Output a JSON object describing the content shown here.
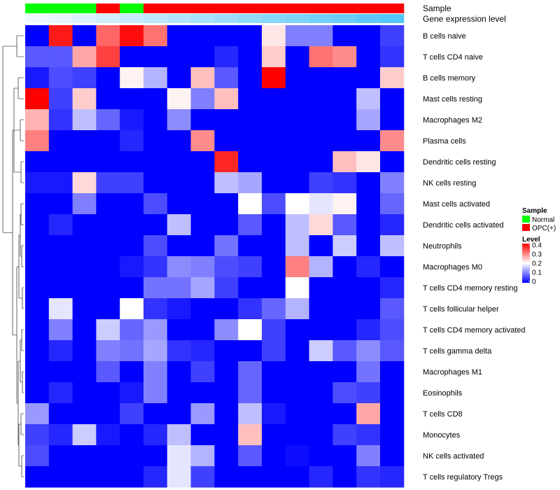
{
  "chart_data": {
    "type": "heatmap",
    "title": "",
    "annotation_tracks": [
      {
        "name": "Sample",
        "values": [
          "Normal",
          "Normal",
          "Normal",
          "OPC(+)",
          "Normal",
          "OPC(+)",
          "OPC(+)",
          "OPC(+)",
          "OPC(+)",
          "OPC(+)",
          "OPC(+)",
          "OPC(+)",
          "OPC(+)",
          "OPC(+)",
          "OPC(+)",
          "OPC(+)"
        ]
      },
      {
        "name": "Gene expression level",
        "values": [
          1,
          2,
          3,
          4,
          5,
          6,
          7,
          8,
          9,
          10,
          11,
          12,
          13,
          14,
          15,
          16
        ]
      }
    ],
    "rows": [
      "B cells naive",
      "T cells CD4 naive",
      "B cells memory",
      "Mast cells resting",
      "Macrophages M2",
      "Plasma cells",
      "Dendritic cells resting",
      "NK cells resting",
      "Mast cells activated",
      "Dendritic cells activated",
      "Neutrophils",
      "Macrophages M0",
      "T cells CD4 memory resting",
      "T cells follicular helper",
      "T cells CD4 memory activated",
      "T cells gamma delta",
      "Macrophages M1",
      "Eosinophils",
      "T cells CD8",
      "Monocytes",
      "NK cells activated",
      "T cells regulatory  Tregs"
    ],
    "values": [
      [
        0,
        0.38,
        0,
        0.32,
        0.39,
        0.31,
        0,
        0,
        0,
        0,
        0.22,
        0.1,
        0.1,
        0,
        0,
        0.05
      ],
      [
        0.07,
        0.07,
        0.27,
        0.35,
        0,
        0,
        0,
        0,
        0.03,
        0,
        0.24,
        0,
        0.31,
        0.29,
        0,
        0.04
      ],
      [
        0.02,
        0.06,
        0.05,
        0,
        0.21,
        0.14,
        0,
        0.25,
        0.07,
        0,
        0.4,
        0,
        0,
        0,
        0,
        0.24
      ],
      [
        0.4,
        0.05,
        0.24,
        0,
        0,
        0,
        0.21,
        0.1,
        0.25,
        0,
        0,
        0,
        0,
        0,
        0.15,
        0
      ],
      [
        0.26,
        0.04,
        0.15,
        0.08,
        0.02,
        0,
        0.11,
        0,
        0,
        0,
        0,
        0,
        0,
        0,
        0.13,
        0
      ],
      [
        0.3,
        0,
        0,
        0,
        0.03,
        0,
        0,
        0.29,
        0,
        0,
        0,
        0,
        0,
        0,
        0,
        0.29
      ],
      [
        0,
        0,
        0,
        0,
        0,
        0,
        0,
        0,
        0.37,
        0,
        0,
        0,
        0,
        0.25,
        0.22,
        0
      ],
      [
        0.02,
        0.02,
        0.23,
        0.05,
        0.05,
        0,
        0,
        0,
        0.15,
        0.13,
        0,
        0,
        0.05,
        0.04,
        0,
        0.1
      ],
      [
        0,
        0,
        0.1,
        0,
        0,
        0.06,
        0,
        0,
        0,
        0.2,
        0.06,
        0.2,
        0.18,
        0.21,
        0,
        0.08
      ],
      [
        0,
        0.03,
        0,
        0,
        0,
        0,
        0.15,
        0,
        0,
        0.07,
        0,
        0.15,
        0.23,
        0.07,
        0,
        0.03
      ],
      [
        0,
        0,
        0,
        0,
        0,
        0.06,
        0,
        0,
        0.09,
        0,
        0,
        0.15,
        0,
        0.16,
        0,
        0.15
      ],
      [
        0,
        0,
        0,
        0,
        0.02,
        0.04,
        0.11,
        0.1,
        0.06,
        0.05,
        0,
        0.3,
        0.14,
        0,
        0.03,
        0
      ],
      [
        0,
        0,
        0,
        0,
        0,
        0.09,
        0.09,
        0.13,
        0.05,
        0,
        0,
        0.2,
        0,
        0,
        0,
        0.03
      ],
      [
        0,
        0.18,
        0,
        0,
        0.2,
        0.04,
        0.02,
        0,
        0,
        0.04,
        0.08,
        0.14,
        0,
        0,
        0,
        0.07
      ],
      [
        0,
        0.1,
        0,
        0.16,
        0.08,
        0.12,
        0,
        0,
        0.11,
        0.2,
        0.05,
        0,
        0,
        0,
        0.03,
        0.06
      ],
      [
        0,
        0.03,
        0,
        0.1,
        0.09,
        0.13,
        0.04,
        0.03,
        0,
        0,
        0.05,
        0,
        0.16,
        0.07,
        0.11,
        0.07
      ],
      [
        0,
        0,
        0,
        0.07,
        0,
        0.1,
        0,
        0.05,
        0,
        0.08,
        0,
        0,
        0,
        0,
        0.09,
        0
      ],
      [
        0,
        0.03,
        0,
        0,
        0.02,
        0.1,
        0,
        0,
        0,
        0.08,
        0,
        0,
        0,
        0.06,
        0.05,
        0
      ],
      [
        0.12,
        0,
        0,
        0,
        0.05,
        0,
        0,
        0.12,
        0,
        0.15,
        0.02,
        0,
        0,
        0,
        0.27,
        0
      ],
      [
        0.05,
        0.03,
        0.16,
        0.02,
        0,
        0.03,
        0.15,
        0,
        0,
        0.25,
        0,
        0,
        0,
        0.05,
        0.04,
        0
      ],
      [
        0.06,
        0,
        0,
        0,
        0,
        0,
        0.18,
        0.14,
        0,
        0.07,
        0,
        0.01,
        0,
        0,
        0.1,
        0
      ],
      [
        0,
        0,
        0,
        0,
        0,
        0.03,
        0.18,
        0.05,
        0,
        0,
        0,
        0,
        0.03,
        0,
        0.04,
        0.03
      ]
    ],
    "color_scale": {
      "low": "#0000ff",
      "mid": "#ffffff",
      "high": "#ff0000",
      "min": 0,
      "mid_value": 0.2,
      "max": 0.4
    },
    "legend": {
      "placement": "right",
      "sample": {
        "title": "Sample",
        "items": [
          {
            "label": "Normal",
            "color": "#00ff00"
          },
          {
            "label": "OPC(+)",
            "color": "#ff0000"
          }
        ]
      },
      "level": {
        "title": "Level",
        "ticks": [
          "0.4",
          "0.3",
          "0.2",
          "0.1",
          "0"
        ]
      }
    },
    "row_dendrogram": true
  }
}
